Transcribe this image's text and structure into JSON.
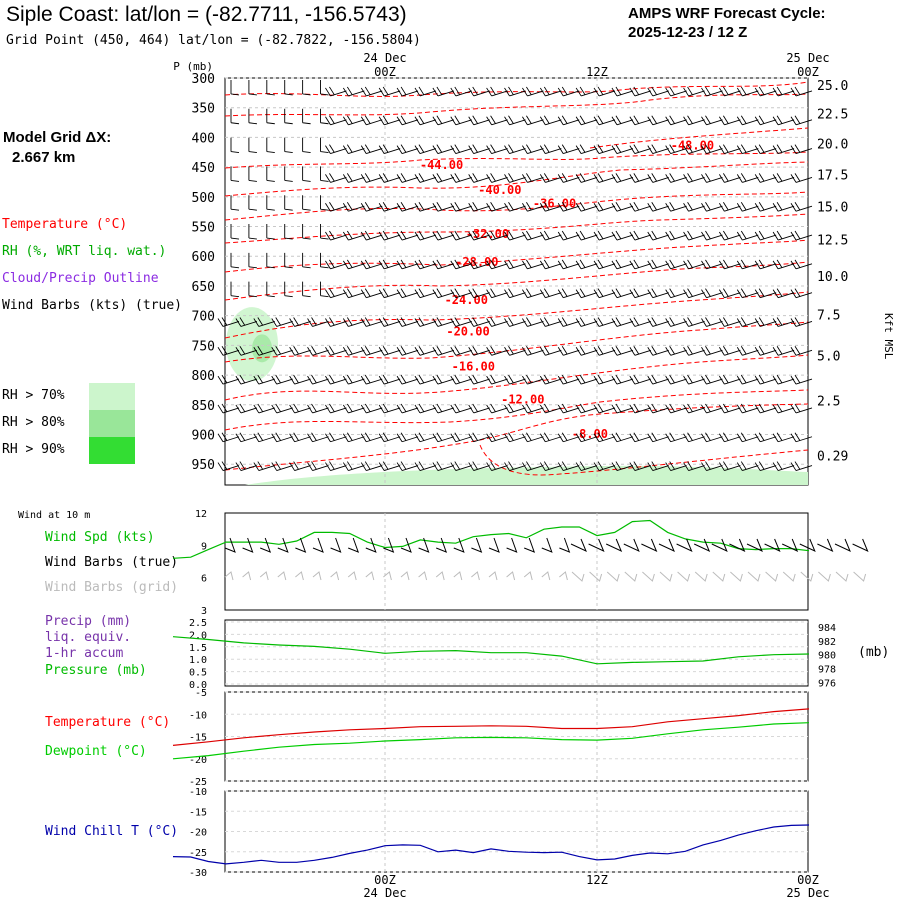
{
  "header": {
    "title": "Siple Coast:  lat/lon = (-82.7711, -156.5743)",
    "subtitle": "Grid Point (450, 464) lat/lon = (-82.7822, -156.5804)",
    "cycle_line1": "AMPS WRF Forecast Cycle:",
    "cycle_line2": "2025-12-23 / 12  Z",
    "model_grid_label": "Model Grid ΔX:",
    "model_grid_value": "2.667 km"
  },
  "legend": {
    "temperature": "Temperature (°C)",
    "rh": "RH (%, WRT liq. wat.)",
    "cloud": "Cloud/Precip Outline",
    "wind_barbs": "Wind Barbs (kts) (true)",
    "rh_levels": [
      "RH > 70%",
      "RH > 80%",
      "RH > 90%"
    ],
    "rh_colors": [
      "#ccf5cc",
      "#99e699",
      "#33dd33"
    ]
  },
  "colors": {
    "temperature": "#ff0000",
    "dewpoint": "#00cc00",
    "rh": "#00cc00",
    "cloud": "#8b2be2",
    "windchill": "#0000aa",
    "barb_grid": "#bbbbbb"
  },
  "time_axis": {
    "top_labels": [
      {
        "date": "24 Dec",
        "time": "00Z"
      },
      {
        "date": "",
        "time": "12Z"
      },
      {
        "date": "25 Dec",
        "time": "00Z"
      }
    ],
    "bottom_labels": [
      {
        "time": "00Z",
        "date": "24 Dec"
      },
      {
        "time": "12Z",
        "date": ""
      },
      {
        "time": "00Z",
        "date": "25 Dec"
      }
    ]
  },
  "chart_data": [
    {
      "type": "contour",
      "id": "cross_section",
      "yaxis_left_title": "P (mb)",
      "yaxis_right_title": "Kft MSL",
      "pressure_ticks": [
        "300",
        "350",
        "400",
        "450",
        "500",
        "550",
        "600",
        "650",
        "700",
        "750",
        "800",
        "850",
        "900",
        "950"
      ],
      "height_ticks": [
        {
          "label": "25.0",
          "p": 312
        },
        {
          "label": "22.5",
          "p": 360
        },
        {
          "label": "20.0",
          "p": 410
        },
        {
          "label": "17.5",
          "p": 462
        },
        {
          "label": "15.0",
          "p": 516
        },
        {
          "label": "12.5",
          "p": 572
        },
        {
          "label": "10.0",
          "p": 633
        },
        {
          "label": "7.5",
          "p": 698
        },
        {
          "label": "5.0",
          "p": 767
        },
        {
          "label": "2.5",
          "p": 843
        },
        {
          "label": "0.29",
          "p": 935
        }
      ],
      "isotherm_labels": [
        {
          "text": "-48.00",
          "h": 17.4,
          "p": 420
        },
        {
          "text": "-44.00",
          "h": 3.2,
          "p": 453
        },
        {
          "text": "-40.00",
          "h": 6.5,
          "p": 495
        },
        {
          "text": "-36.00",
          "h": 9.6,
          "p": 518
        },
        {
          "text": "-32.00",
          "h": 5.8,
          "p": 569
        },
        {
          "text": "-28.00",
          "h": 5.2,
          "p": 616
        },
        {
          "text": "-24.00",
          "h": 4.6,
          "p": 680
        },
        {
          "text": "-20.00",
          "h": 4.7,
          "p": 733
        },
        {
          "text": "-16.00",
          "h": 5.0,
          "p": 792
        },
        {
          "text": "-12.00",
          "h": 7.8,
          "p": 848
        },
        {
          "text": "-8.00",
          "h": 11.6,
          "p": 906
        }
      ]
    },
    {
      "type": "line",
      "id": "wind",
      "label_top": "Wind at 10 m",
      "series_labels": [
        "Wind Spd (kts)",
        "Wind Barbs (true)",
        "Wind Barbs (grid)"
      ],
      "y_ticks": [
        "12",
        "9",
        "6",
        "3"
      ],
      "ylim": [
        3,
        12
      ],
      "series": [
        {
          "name": "Wind Spd (kts)",
          "x": [
            -12,
            -11,
            -10,
            -9,
            -8,
            -7,
            -6,
            -5,
            -4,
            -3,
            -2,
            -1,
            0,
            1,
            2,
            3,
            4,
            5,
            6,
            7,
            8,
            9,
            10,
            11,
            12,
            13,
            14,
            15,
            16,
            17,
            18,
            19,
            20,
            21,
            22,
            23,
            24
          ],
          "values": [
            7.8,
            7.9,
            8.6,
            9.3,
            9.3,
            9.3,
            9.1,
            9.4,
            10.2,
            10.2,
            10.1,
            9.3,
            8.8,
            8.9,
            9.5,
            9.3,
            9.2,
            9.8,
            10.0,
            10.1,
            9.7,
            10.5,
            10.7,
            10.7,
            9.9,
            10.2,
            11.2,
            11.3,
            10.2,
            9.6,
            9.3,
            9.2,
            8.7,
            8.6,
            8.7,
            8.7,
            8.5
          ]
        }
      ]
    },
    {
      "type": "line",
      "id": "precip_pressure",
      "series_labels": [
        "Precip (mm)",
        "liq. equiv.",
        "1-hr accum",
        "Pressure (mb)"
      ],
      "y_ticks_left": [
        "2.5",
        "2.0",
        "1.5",
        "1.0",
        "0.5",
        "0.0"
      ],
      "y_ticks_right": [
        "984",
        "982",
        "980",
        "978",
        "976"
      ],
      "right_unit": "(mb)",
      "ylim_right": [
        975.5,
        985
      ],
      "series": [
        {
          "name": "Pressure (mb)",
          "x": [
            -12,
            -10,
            -8,
            -6,
            -4,
            -2,
            0,
            2,
            4,
            6,
            8,
            10,
            12,
            14,
            16,
            18,
            20,
            22,
            24
          ],
          "values": [
            982.6,
            982.2,
            981.7,
            981.4,
            981.2,
            980.8,
            980.2,
            980.5,
            980.6,
            980.3,
            980.3,
            979.8,
            978.7,
            978.9,
            979.0,
            979.1,
            979.7,
            980.0,
            980.1
          ]
        }
      ]
    },
    {
      "type": "line",
      "id": "temperature",
      "series_labels": [
        "Temperature (°C)",
        "Dewpoint (°C)"
      ],
      "y_ticks": [
        "-5",
        "-10",
        "-15",
        "-20",
        "-25"
      ],
      "ylim": [
        -25,
        -5
      ],
      "x": [
        -12,
        -10,
        -8,
        -6,
        -4,
        -2,
        0,
        2,
        4,
        6,
        8,
        10,
        12,
        14,
        16,
        18,
        20,
        22,
        24
      ],
      "series": [
        {
          "name": "Temperature (°C)",
          "values": [
            -17,
            -16.2,
            -15.3,
            -14.6,
            -14.0,
            -13.5,
            -13.2,
            -12.8,
            -12.7,
            -12.6,
            -12.7,
            -13.2,
            -13.2,
            -12.8,
            -11.7,
            -11.0,
            -10.3,
            -9.4,
            -8.8
          ]
        },
        {
          "name": "Dewpoint (°C)",
          "values": [
            -20,
            -19.3,
            -18.3,
            -17.4,
            -16.8,
            -16.5,
            -16.0,
            -15.7,
            -15.3,
            -15.2,
            -15.3,
            -15.7,
            -15.8,
            -15.4,
            -14.4,
            -13.5,
            -12.9,
            -12.2,
            -11.9
          ]
        }
      ]
    },
    {
      "type": "line",
      "id": "windchill",
      "series_labels": [
        "Wind Chill T (°C)"
      ],
      "y_ticks": [
        "-10",
        "-15",
        "-20",
        "-25",
        "-30"
      ],
      "ylim": [
        -30,
        -10
      ],
      "series": [
        {
          "name": "Wind Chill T (°C)",
          "x": [
            -12,
            -11,
            -10,
            -9,
            -8,
            -7,
            -6,
            -5,
            -4,
            -3,
            -2,
            -1,
            0,
            1,
            2,
            3,
            4,
            5,
            6,
            7,
            8,
            9,
            10,
            11,
            12,
            13,
            14,
            15,
            16,
            17,
            18,
            19,
            20,
            21,
            22,
            23,
            24
          ],
          "values": [
            -26.2,
            -26.3,
            -27.4,
            -28.0,
            -27.6,
            -27.1,
            -27.6,
            -27.6,
            -27.1,
            -26.4,
            -25.4,
            -24.6,
            -23.5,
            -23.3,
            -23.4,
            -25.0,
            -24.6,
            -25.2,
            -24.3,
            -24.9,
            -25.1,
            -25.2,
            -25.1,
            -26.2,
            -27.0,
            -26.8,
            -25.9,
            -25.3,
            -25.5,
            -24.9,
            -23.3,
            -22.2,
            -20.9,
            -19.8,
            -18.9,
            -18.5,
            -18.4
          ]
        }
      ]
    }
  ]
}
